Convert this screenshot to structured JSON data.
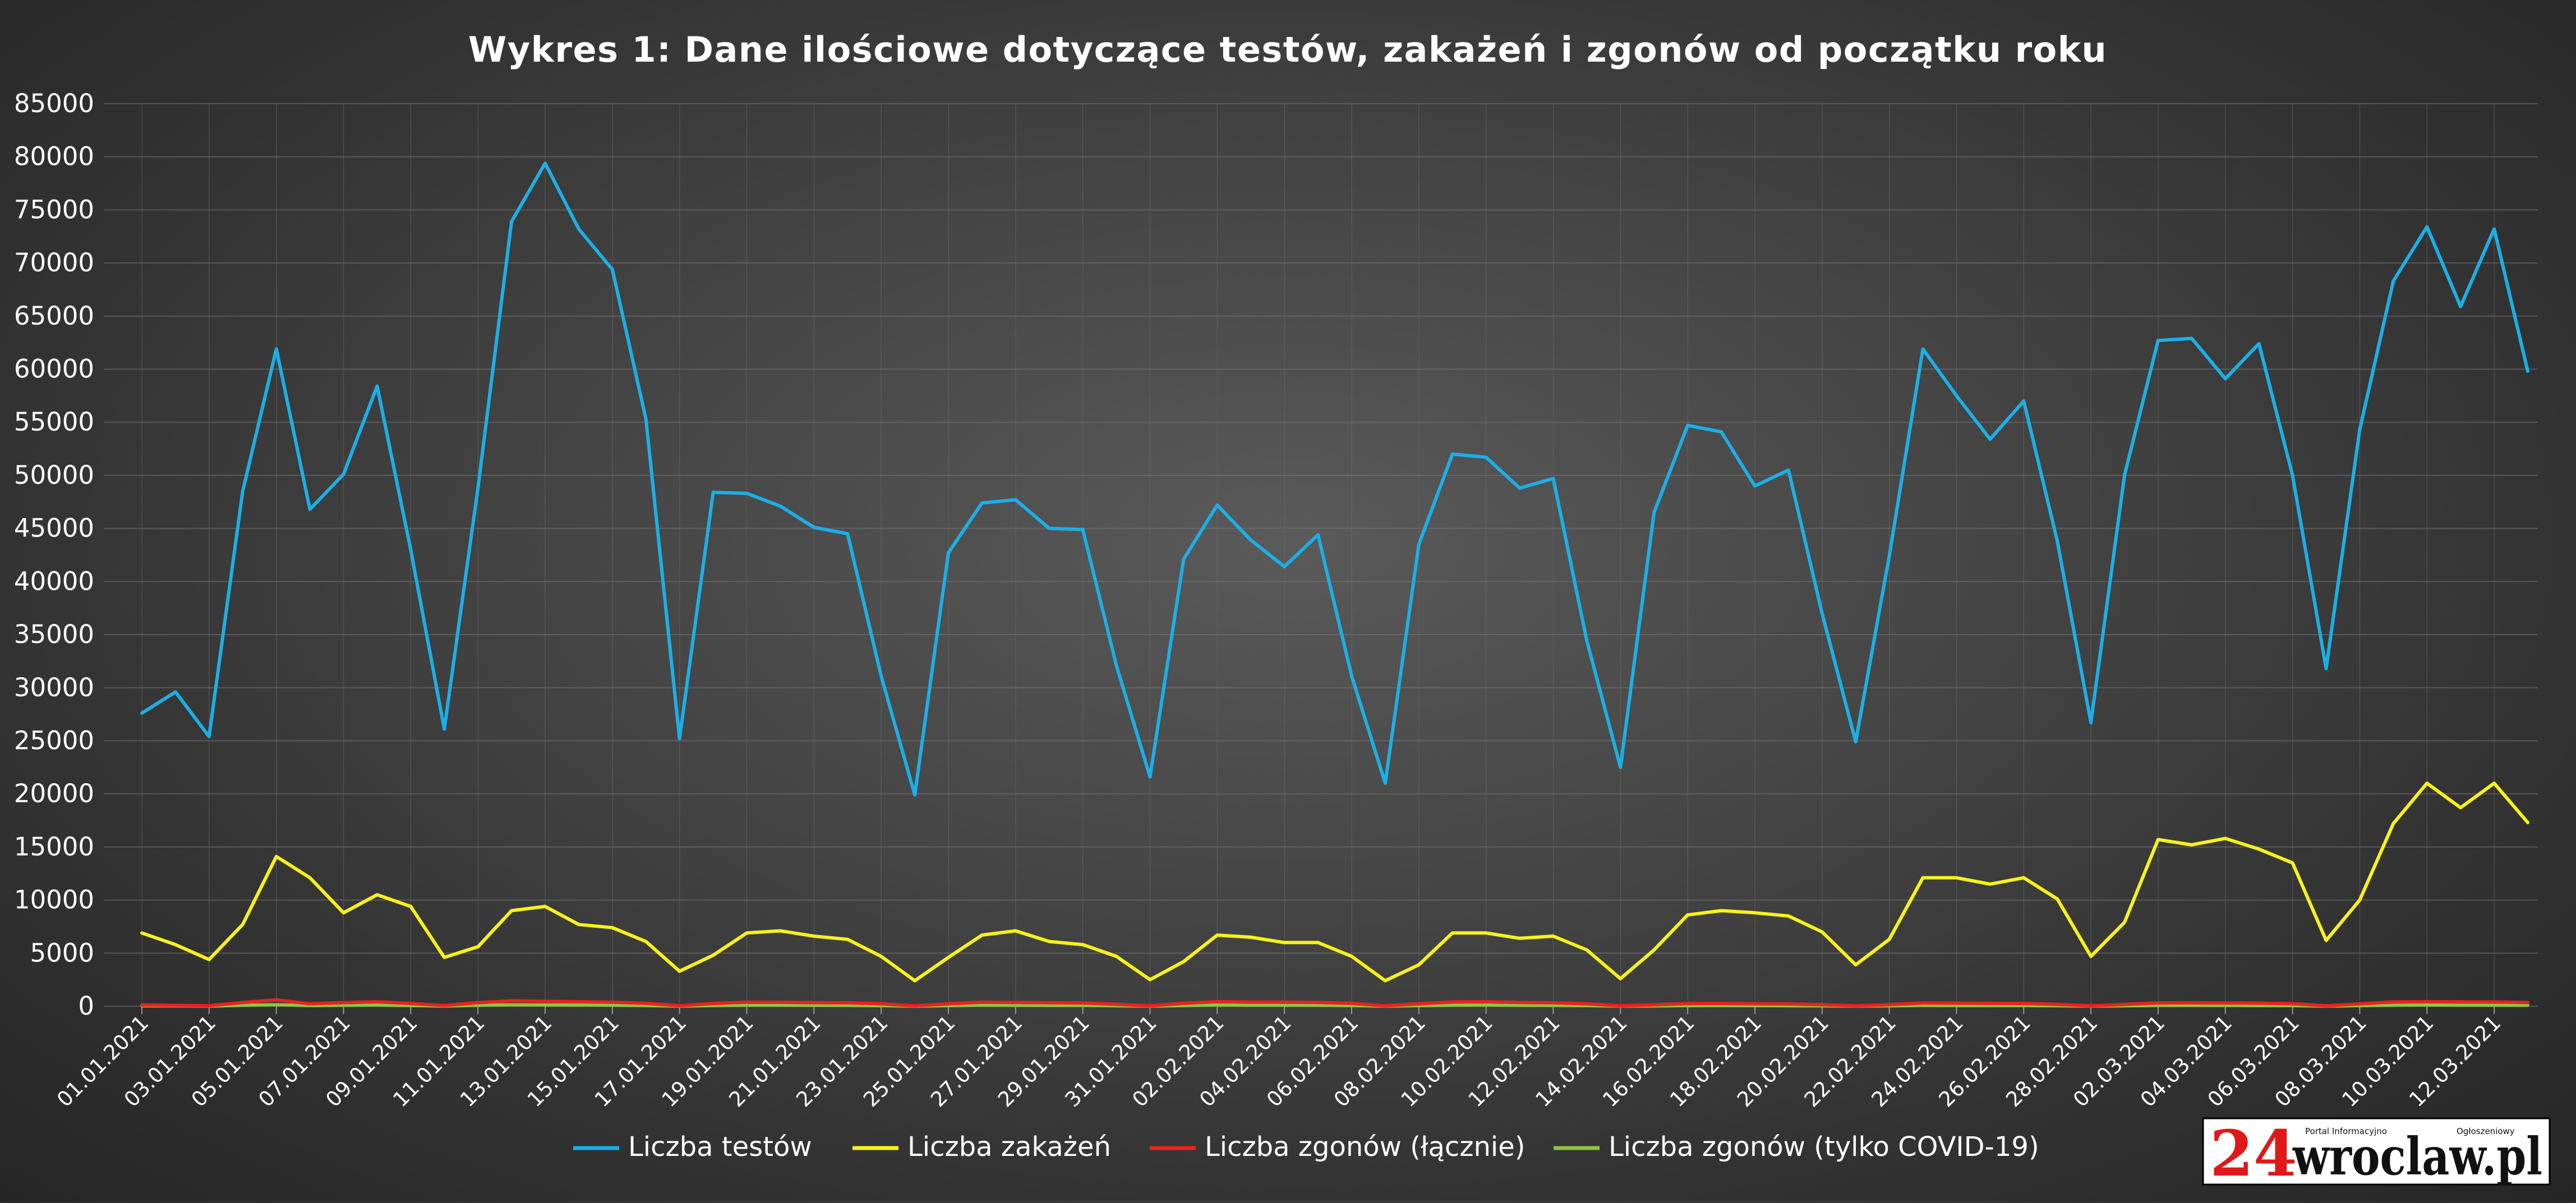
{
  "chart_data": {
    "type": "line",
    "title": "Wykres 1: Dane ilościowe dotyczące testów, zakażeń i zgonów od początku roku",
    "xlabel": "",
    "ylabel": "",
    "ylim": [
      0,
      85000
    ],
    "yticks": [
      0,
      5000,
      10000,
      15000,
      20000,
      25000,
      30000,
      35000,
      40000,
      45000,
      50000,
      55000,
      60000,
      65000,
      70000,
      75000,
      80000,
      85000
    ],
    "grid": true,
    "legend_position": "bottom",
    "x": [
      "01.01.2021",
      "02.01.2021",
      "03.01.2021",
      "04.01.2021",
      "05.01.2021",
      "06.01.2021",
      "07.01.2021",
      "08.01.2021",
      "09.01.2021",
      "10.01.2021",
      "11.01.2021",
      "12.01.2021",
      "13.01.2021",
      "14.01.2021",
      "15.01.2021",
      "16.01.2021",
      "17.01.2021",
      "18.01.2021",
      "19.01.2021",
      "20.01.2021",
      "21.01.2021",
      "22.01.2021",
      "23.01.2021",
      "24.01.2021",
      "25.01.2021",
      "26.01.2021",
      "27.01.2021",
      "28.01.2021",
      "29.01.2021",
      "30.01.2021",
      "31.01.2021",
      "01.02.2021",
      "02.02.2021",
      "03.02.2021",
      "04.02.2021",
      "05.02.2021",
      "06.02.2021",
      "07.02.2021",
      "08.02.2021",
      "09.02.2021",
      "10.02.2021",
      "11.02.2021",
      "12.02.2021",
      "13.02.2021",
      "14.02.2021",
      "15.02.2021",
      "16.02.2021",
      "17.02.2021",
      "18.02.2021",
      "19.02.2021",
      "20.02.2021",
      "21.02.2021",
      "22.02.2021",
      "23.02.2021",
      "24.02.2021",
      "25.02.2021",
      "26.02.2021",
      "27.02.2021",
      "28.02.2021",
      "01.03.2021",
      "02.03.2021",
      "03.03.2021",
      "04.03.2021",
      "05.03.2021",
      "06.03.2021",
      "07.03.2021",
      "08.03.2021",
      "09.03.2021",
      "10.03.2021",
      "11.03.2021",
      "12.03.2021",
      "13.03.2021"
    ],
    "x_tick_labels": [
      "01.01.2021",
      "03.01.2021",
      "05.01.2021",
      "07.01.2021",
      "09.01.2021",
      "11.01.2021",
      "13.01.2021",
      "15.01.2021",
      "17.01.2021",
      "19.01.2021",
      "21.01.2021",
      "23.01.2021",
      "25.01.2021",
      "27.01.2021",
      "29.01.2021",
      "31.01.2021",
      "02.02.2021",
      "04.02.2021",
      "06.02.2021",
      "08.02.2021",
      "10.02.2021",
      "12.02.2021",
      "14.02.2021",
      "16.02.2021",
      "18.02.2021",
      "20.02.2021",
      "22.02.2021",
      "24.02.2021",
      "26.02.2021",
      "28.02.2021",
      "02.03.2021",
      "04.03.2021",
      "06.03.2021",
      "08.03.2021",
      "10.03.2021",
      "12.03.2021"
    ],
    "series": [
      {
        "name": "Liczba testów",
        "color": "#1ab0e8",
        "values": [
          27600,
          29600,
          25400,
          48500,
          61900,
          46800,
          50100,
          58400,
          43000,
          26100,
          48800,
          73900,
          79400,
          73200,
          69400,
          55300,
          25200,
          48400,
          48300,
          47100,
          45100,
          44500,
          31100,
          19900,
          42700,
          47400,
          47700,
          45000,
          44900,
          32100,
          21600,
          42100,
          47200,
          43900,
          41400,
          44400,
          31100,
          21000,
          43500,
          52000,
          51700,
          48800,
          49700,
          34400,
          22500,
          46500,
          54700,
          54100,
          49000,
          50500,
          37000,
          24900,
          42400,
          61900,
          57500,
          53400,
          57000,
          43800,
          26700,
          50000,
          62700,
          62900,
          59100,
          62400,
          50000,
          31800,
          54300,
          68300,
          73400,
          65900,
          73200,
          59800
        ]
      },
      {
        "name": "Liczba zakażeń",
        "color": "#f7f21b",
        "values": [
          6900,
          5800,
          4400,
          7700,
          14100,
          12100,
          8800,
          10500,
          9400,
          4600,
          5600,
          9000,
          9400,
          7700,
          7400,
          6100,
          3300,
          4800,
          6900,
          7100,
          6600,
          6300,
          4700,
          2400,
          4600,
          6700,
          7100,
          6100,
          5800,
          4700,
          2500,
          4200,
          6700,
          6500,
          6000,
          6000,
          4700,
          2400,
          3900,
          6900,
          6900,
          6400,
          6600,
          5300,
          2600,
          5300,
          8600,
          9000,
          8800,
          8500,
          7000,
          3900,
          6300,
          12100,
          12100,
          11500,
          12100,
          10100,
          4700,
          7900,
          15700,
          15200,
          15800,
          14800,
          13500,
          6200,
          10000,
          17200,
          21000,
          18700,
          21000,
          17300
        ]
      },
      {
        "name": "Liczba zgonów (łącznie)",
        "color": "#e8231e",
        "values": [
          120,
          80,
          40,
          350,
          600,
          230,
          340,
          420,
          260,
          70,
          340,
          520,
          470,
          420,
          380,
          270,
          50,
          260,
          380,
          370,
          340,
          320,
          230,
          40,
          220,
          380,
          360,
          330,
          300,
          180,
          30,
          280,
          440,
          390,
          380,
          360,
          270,
          40,
          220,
          400,
          420,
          360,
          320,
          230,
          30,
          130,
          250,
          260,
          230,
          210,
          140,
          30,
          150,
          300,
          290,
          270,
          260,
          180,
          30,
          170,
          310,
          320,
          300,
          290,
          240,
          40,
          220,
          400,
          430,
          410,
          400,
          350
        ]
      },
      {
        "name": "Liczba zgonów (tylko COVID-19)",
        "color": "#8cc63f",
        "values": [
          40,
          30,
          10,
          90,
          140,
          70,
          90,
          110,
          70,
          20,
          90,
          130,
          120,
          110,
          100,
          70,
          10,
          70,
          100,
          100,
          90,
          80,
          60,
          10,
          60,
          100,
          90,
          80,
          80,
          50,
          10,
          70,
          110,
          100,
          100,
          90,
          70,
          10,
          60,
          100,
          110,
          90,
          80,
          60,
          10,
          30,
          60,
          70,
          60,
          50,
          40,
          10,
          40,
          80,
          70,
          70,
          70,
          50,
          10,
          40,
          80,
          80,
          80,
          70,
          60,
          10,
          60,
          100,
          110,
          100,
          100,
          90
        ]
      }
    ]
  },
  "logo": {
    "number": "24",
    "name": "wroclaw.pl",
    "tagline_left": "Portal Informacyjno",
    "tagline_right": "Ogłoszeniowy"
  }
}
